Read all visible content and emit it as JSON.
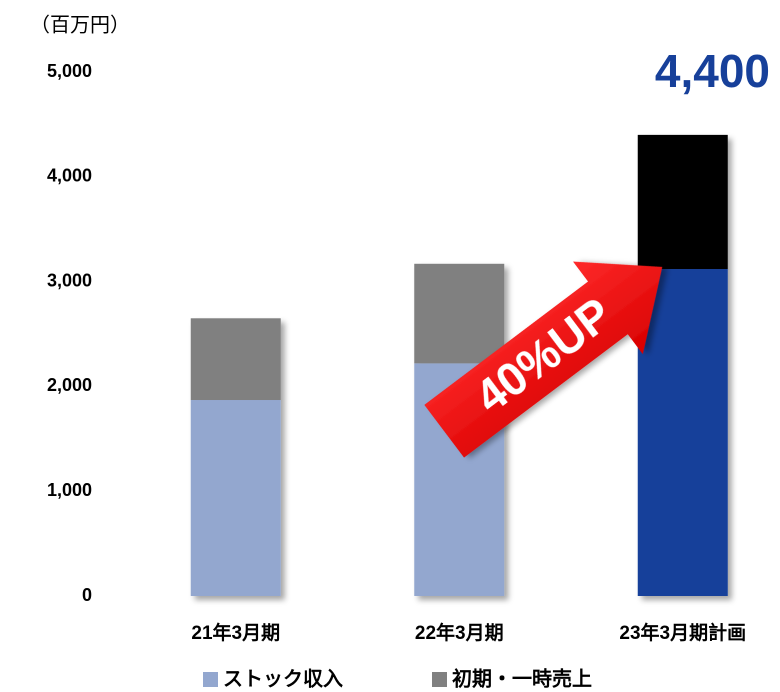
{
  "chart_data": {
    "type": "stacked_bar",
    "unit_label": "（百万円）",
    "categories": [
      "21年3月期",
      "22年3月期",
      "23年3月期計画"
    ],
    "series": [
      {
        "name": "ストック収入",
        "color": "#93a7cf",
        "colors": [
          "#93a7cf",
          "#93a7cf",
          "#17409a"
        ],
        "values": [
          1870,
          2220,
          3120
        ]
      },
      {
        "name": "初期・一時売上",
        "color": "#808080",
        "colors": [
          "#808080",
          "#808080",
          "#000000"
        ],
        "values": [
          780,
          950,
          1280
        ]
      }
    ],
    "ylim": [
      0,
      5000
    ],
    "yticks": [
      0,
      {
        "value": 1000,
        "label": "1,000"
      },
      {
        "value": 2000,
        "label": "2,000"
      },
      {
        "value": 3000,
        "label": "3,000"
      },
      {
        "value": 4000,
        "label": "4,000"
      },
      {
        "value": 5000,
        "label": "5,000"
      }
    ],
    "total_label": "4,400",
    "arrow_label": "40%UP"
  }
}
